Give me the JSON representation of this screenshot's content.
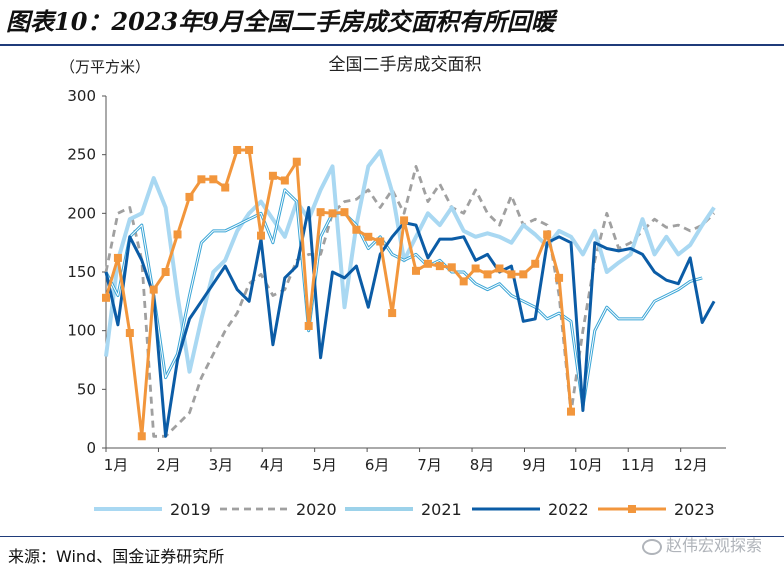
{
  "figure_title": "图表10：2023年9月全国二手房成交面积有所回暖",
  "source": "来源：Wind、国金证券研究所",
  "watermark": "赵伟宏观探索",
  "chart_data": {
    "type": "line",
    "title": "全国二手房成交面积",
    "ylabel": "（万平方米）",
    "xlabel": "",
    "ylim": [
      0,
      300
    ],
    "yticks": [
      0,
      50,
      100,
      150,
      200,
      250,
      300
    ],
    "xlim": [
      0,
      52
    ],
    "x_tick_labels": [
      "1月",
      "2月",
      "3月",
      "4月",
      "5月",
      "6月",
      "7月",
      "8月",
      "9月",
      "10月",
      "11月",
      "12月"
    ],
    "x_tick_positions": [
      0,
      4.4,
      8.8,
      13.1,
      17.5,
      21.9,
      26.3,
      30.7,
      35.1,
      39.4,
      43.8,
      48.2
    ],
    "grid": false,
    "legend_position": "bottom",
    "series": [
      {
        "name": "2019",
        "color": "#a9d8f2",
        "style": "thick-solid",
        "marker": "none",
        "x": [
          0,
          1,
          2,
          3,
          4,
          5,
          6,
          7,
          8,
          9,
          10,
          11,
          12,
          13,
          14,
          15,
          16,
          17,
          18,
          19,
          20,
          21,
          22,
          23,
          24,
          25,
          26,
          27,
          28,
          29,
          30,
          31,
          32,
          33,
          34,
          35,
          36,
          37,
          38,
          39,
          40,
          41,
          42,
          43,
          44,
          45,
          46,
          47,
          48,
          49,
          50,
          51
        ],
        "values": [
          78,
          160,
          195,
          200,
          230,
          205,
          130,
          65,
          110,
          150,
          160,
          185,
          200,
          210,
          195,
          180,
          210,
          195,
          220,
          240,
          120,
          190,
          240,
          253,
          218,
          160,
          180,
          200,
          190,
          205,
          185,
          180,
          183,
          180,
          175,
          190,
          182,
          172,
          185,
          180,
          165,
          185,
          150,
          158,
          165,
          195,
          165,
          180,
          165,
          173,
          190,
          205
        ]
      },
      {
        "name": "2020",
        "color": "#a0a0a0",
        "style": "dashed",
        "marker": "none",
        "x": [
          0,
          1,
          2,
          3,
          4,
          5,
          6,
          7,
          8,
          9,
          10,
          11,
          12,
          13,
          14,
          15,
          16,
          17,
          18,
          19,
          20,
          21,
          22,
          23,
          24,
          25,
          26,
          27,
          28,
          29,
          30,
          31,
          32,
          33,
          34,
          35,
          36,
          37,
          38,
          39,
          40,
          41,
          42,
          43,
          44,
          45,
          46,
          47,
          48,
          49,
          50,
          51
        ],
        "values": [
          150,
          200,
          205,
          160,
          10,
          10,
          20,
          30,
          60,
          80,
          100,
          115,
          140,
          148,
          130,
          135,
          160,
          165,
          165,
          200,
          210,
          212,
          220,
          205,
          220,
          200,
          240,
          210,
          225,
          205,
          200,
          220,
          200,
          190,
          215,
          190,
          195,
          190,
          130,
          30,
          100,
          160,
          200,
          170,
          175,
          185,
          195,
          188,
          190,
          185,
          190,
          200
        ]
      },
      {
        "name": "2021",
        "color": "#3aa5d6",
        "style": "thin-double",
        "marker": "none",
        "x": [
          0,
          1,
          2,
          3,
          4,
          5,
          6,
          7,
          8,
          9,
          10,
          11,
          12,
          13,
          14,
          15,
          16,
          17,
          18,
          19,
          20,
          21,
          22,
          23,
          24,
          25,
          26,
          27,
          28,
          29,
          30,
          31,
          32,
          33,
          34,
          35,
          36,
          37,
          38,
          39,
          40,
          41,
          42,
          43,
          44,
          45,
          46,
          47,
          48,
          49,
          50
        ],
        "values": [
          150,
          130,
          180,
          190,
          130,
          60,
          80,
          130,
          175,
          185,
          185,
          190,
          195,
          200,
          175,
          220,
          210,
          100,
          180,
          200,
          200,
          190,
          170,
          180,
          165,
          160,
          165,
          155,
          160,
          150,
          150,
          140,
          135,
          140,
          130,
          125,
          120,
          110,
          115,
          108,
          35,
          100,
          120,
          110,
          110,
          110,
          125,
          130,
          135,
          142,
          145
        ]
      },
      {
        "name": "2022",
        "color": "#0b5ca6",
        "style": "thick-solid",
        "marker": "none",
        "x": [
          0,
          1,
          2,
          3,
          4,
          5,
          6,
          7,
          8,
          9,
          10,
          11,
          12,
          13,
          14,
          15,
          16,
          17,
          18,
          19,
          20,
          21,
          22,
          23,
          24,
          25,
          26,
          27,
          28,
          29,
          30,
          31,
          32,
          33,
          34,
          35,
          36,
          37,
          38,
          39,
          40,
          41,
          42,
          43,
          44,
          45,
          46,
          47,
          48,
          49,
          50,
          51
        ],
        "values": [
          150,
          105,
          180,
          160,
          130,
          10,
          75,
          110,
          125,
          140,
          155,
          135,
          125,
          178,
          88,
          145,
          155,
          205,
          77,
          150,
          145,
          155,
          120,
          165,
          180,
          192,
          190,
          162,
          178,
          178,
          180,
          160,
          165,
          150,
          155,
          108,
          110,
          175,
          180,
          175,
          32,
          175,
          170,
          168,
          170,
          165,
          150,
          143,
          140,
          162,
          107,
          125
        ]
      },
      {
        "name": "2023",
        "color": "#f2963c",
        "style": "solid",
        "marker": "square",
        "x": [
          0,
          1,
          2,
          3,
          4,
          5,
          6,
          7,
          8,
          9,
          10,
          11,
          12,
          13,
          14,
          15,
          16,
          17,
          18,
          19,
          20,
          21,
          22,
          23,
          24,
          25,
          26,
          27,
          28,
          29,
          30,
          31,
          32,
          33,
          34,
          35,
          36,
          37,
          38,
          39,
          40
        ],
        "values": [
          128,
          162,
          98,
          10,
          135,
          150,
          182,
          214,
          229,
          229,
          222,
          254,
          254,
          181,
          232,
          228,
          244,
          104,
          201,
          200,
          201,
          186,
          180,
          176,
          115,
          194,
          151,
          157,
          155,
          154,
          142,
          153,
          148,
          153,
          148,
          148,
          157,
          182,
          145,
          31,
          null
        ]
      }
    ]
  }
}
